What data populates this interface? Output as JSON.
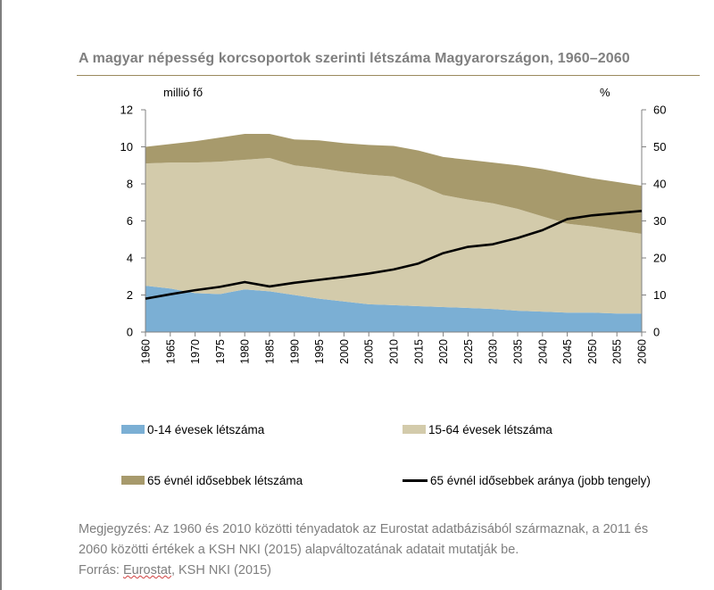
{
  "title": "A magyar népesség korcsoportok szerinti létszáma Magyarországon, 1960–2060",
  "notes": {
    "line1": "Megjegyzés: Az 1960 és 2010 közötti tényadatok az Eurostat adatbázisából származnak, a 2011 és",
    "line2": "2060 közötti értékek a KSH NKI (2015) alapváltozatának adatait mutatják be.",
    "source_prefix": "Forrás: ",
    "source_eurostat": "Eurostat",
    "source_rest": ", KSH NKI (2015)"
  },
  "chart_data": {
    "type": "area",
    "title": "A magyar népesség korcsoportok szerinti létszáma Magyarországon, 1960–2060",
    "ylabel": "millió fő",
    "y2label": "%",
    "ylim": [
      0,
      12
    ],
    "y2lim": [
      0,
      60
    ],
    "yticks": [
      "0",
      "2",
      "4",
      "6",
      "8",
      "10",
      "12"
    ],
    "y2ticks": [
      "0",
      "10",
      "20",
      "30",
      "40",
      "50",
      "60"
    ],
    "xticks": [
      "1960",
      "1965",
      "1970",
      "1975",
      "1980",
      "1985",
      "1990",
      "1995",
      "2000",
      "2005",
      "2010",
      "2015",
      "2020",
      "2025",
      "2030",
      "2035",
      "2040",
      "2045",
      "2050",
      "2055",
      "2060"
    ],
    "x": [
      1960,
      1965,
      1970,
      1975,
      1980,
      1985,
      1990,
      1995,
      2000,
      2005,
      2010,
      2015,
      2020,
      2025,
      2030,
      2035,
      2040,
      2045,
      2050,
      2055,
      2060
    ],
    "stacked": true,
    "grid": false,
    "legend_position": "bottom",
    "series": [
      {
        "name": "0-14 évesek létszáma",
        "type": "area",
        "axis": "left",
        "color": "#7bafd4",
        "values": [
          2.5,
          2.35,
          2.1,
          2.05,
          2.3,
          2.2,
          2.0,
          1.8,
          1.65,
          1.5,
          1.45,
          1.4,
          1.35,
          1.3,
          1.25,
          1.15,
          1.1,
          1.05,
          1.05,
          1.0,
          1.0
        ]
      },
      {
        "name": "15-64 évesek létszáma",
        "type": "area",
        "axis": "left",
        "color": "#d3cbab",
        "values": [
          6.6,
          6.8,
          7.05,
          7.15,
          7.0,
          7.2,
          7.0,
          7.05,
          7.0,
          7.0,
          6.95,
          6.55,
          6.05,
          5.85,
          5.7,
          5.5,
          5.15,
          4.8,
          4.65,
          4.5,
          4.3
        ]
      },
      {
        "name": "65 évnél idősebbek létszáma",
        "type": "area",
        "axis": "left",
        "color": "#a79a6c",
        "values": [
          0.9,
          1.0,
          1.15,
          1.3,
          1.4,
          1.3,
          1.4,
          1.5,
          1.55,
          1.6,
          1.65,
          1.85,
          2.05,
          2.15,
          2.2,
          2.35,
          2.55,
          2.7,
          2.6,
          2.6,
          2.6
        ]
      },
      {
        "name": "65 évnél idősebbek aránya (jobb tengely)",
        "type": "line",
        "axis": "right",
        "color": "#000000",
        "values": [
          9.0,
          10.2,
          11.3,
          12.2,
          13.5,
          12.3,
          13.3,
          14.1,
          14.9,
          15.8,
          16.9,
          18.5,
          21.3,
          23.0,
          23.7,
          25.4,
          27.5,
          30.5,
          31.5,
          32.1,
          32.7
        ]
      }
    ]
  }
}
